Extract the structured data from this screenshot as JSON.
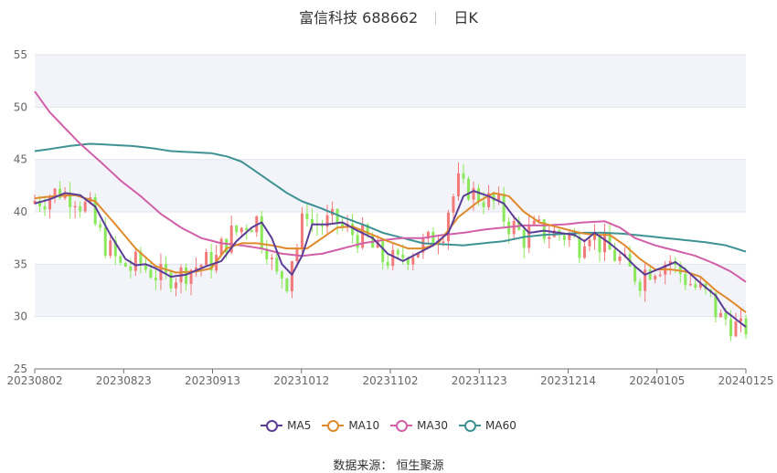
{
  "header": {
    "title": "富信科技 688662",
    "period": "日K"
  },
  "source_text": "数据来源：  恒生聚源",
  "colors": {
    "up": "#f27a7a",
    "down": "#8ae85a",
    "ma5": "#5b3d96",
    "ma10": "#e08a2c",
    "ma30": "#d160a8",
    "ma60": "#3f9294",
    "band": "#f3f4f9",
    "grid": "#e0e6f1"
  },
  "chart_data": {
    "type": "candlestick",
    "title": "富信科技 688662",
    "period": "日K",
    "ylim": [
      25,
      55
    ],
    "yticks": [
      25,
      30,
      35,
      40,
      45,
      50,
      55
    ],
    "x_tick_labels": [
      "20230802",
      "20230823",
      "20230913",
      "20231012",
      "20231102",
      "20231123",
      "20231214",
      "20240105",
      "20240125"
    ],
    "n_days": 121,
    "legend": [
      "MA5",
      "MA10",
      "MA30",
      "MA60"
    ],
    "ma_anchors": {
      "MA5": [
        [
          0,
          40.8
        ],
        [
          3,
          41.2
        ],
        [
          6,
          41.8
        ],
        [
          9,
          41.6
        ],
        [
          12,
          40.5
        ],
        [
          15,
          37.8
        ],
        [
          18,
          35.5
        ],
        [
          20,
          34.9
        ],
        [
          22,
          35.0
        ],
        [
          24,
          34.6
        ],
        [
          27,
          33.8
        ],
        [
          30,
          34.0
        ],
        [
          34,
          34.8
        ],
        [
          37,
          35.3
        ],
        [
          40,
          37.2
        ],
        [
          43,
          38.5
        ],
        [
          45,
          39.0
        ],
        [
          47,
          37.5
        ],
        [
          49,
          35.0
        ],
        [
          51,
          34.0
        ],
        [
          53,
          35.8
        ],
        [
          55,
          38.8
        ],
        [
          58,
          38.8
        ],
        [
          61,
          39.0
        ],
        [
          64,
          38.2
        ],
        [
          67,
          37.5
        ],
        [
          70,
          36.0
        ],
        [
          73,
          35.3
        ],
        [
          75,
          35.8
        ],
        [
          77,
          36.3
        ],
        [
          79,
          36.8
        ],
        [
          82,
          38.0
        ],
        [
          85,
          41.5
        ],
        [
          87,
          42.0
        ],
        [
          90,
          41.5
        ],
        [
          93,
          40.8
        ],
        [
          95,
          39.5
        ],
        [
          98,
          38.0
        ],
        [
          101,
          38.2
        ],
        [
          104,
          38.0
        ],
        [
          107,
          37.8
        ],
        [
          109,
          37.2
        ],
        [
          111,
          38.0
        ],
        [
          114,
          37.0
        ],
        [
          117,
          35.8
        ],
        [
          119,
          34.8
        ],
        [
          121,
          34.0
        ],
        [
          124,
          34.6
        ],
        [
          127,
          35.2
        ],
        [
          129,
          34.5
        ],
        [
          132,
          33.2
        ],
        [
          135,
          32.0
        ],
        [
          137,
          30.5
        ],
        [
          141,
          29.0
        ]
      ],
      "MA10": [
        [
          0,
          41.3
        ],
        [
          4,
          41.5
        ],
        [
          8,
          41.6
        ],
        [
          12,
          41.0
        ],
        [
          16,
          38.8
        ],
        [
          20,
          36.5
        ],
        [
          24,
          34.8
        ],
        [
          28,
          34.2
        ],
        [
          32,
          34.3
        ],
        [
          35,
          34.6
        ],
        [
          38,
          36.5
        ],
        [
          41,
          37.0
        ],
        [
          44,
          37.0
        ],
        [
          47,
          36.8
        ],
        [
          50,
          36.5
        ],
        [
          54,
          36.5
        ],
        [
          57,
          37.5
        ],
        [
          60,
          38.5
        ],
        [
          63,
          38.6
        ],
        [
          66,
          38.0
        ],
        [
          70,
          37.2
        ],
        [
          74,
          36.5
        ],
        [
          77,
          36.5
        ],
        [
          80,
          37.0
        ],
        [
          84,
          39.5
        ],
        [
          88,
          41.0
        ],
        [
          91,
          41.8
        ],
        [
          94,
          41.5
        ],
        [
          97,
          40.0
        ],
        [
          100,
          39.0
        ],
        [
          104,
          38.5
        ],
        [
          108,
          38.0
        ],
        [
          111,
          37.8
        ],
        [
          114,
          37.8
        ],
        [
          117,
          36.8
        ],
        [
          120,
          35.5
        ],
        [
          123,
          34.5
        ],
        [
          126,
          34.5
        ],
        [
          129,
          34.3
        ],
        [
          132,
          33.8
        ],
        [
          135,
          32.5
        ],
        [
          138,
          31.5
        ],
        [
          141,
          30.4
        ]
      ],
      "MA30": [
        [
          0,
          51.5
        ],
        [
          3,
          49.5
        ],
        [
          6,
          48.0
        ],
        [
          9,
          46.5
        ],
        [
          13,
          44.8
        ],
        [
          17,
          43.0
        ],
        [
          21,
          41.5
        ],
        [
          25,
          39.8
        ],
        [
          29,
          38.5
        ],
        [
          33,
          37.5
        ],
        [
          37,
          37.0
        ],
        [
          41,
          36.8
        ],
        [
          45,
          36.5
        ],
        [
          49,
          36.0
        ],
        [
          53,
          35.8
        ],
        [
          57,
          36.0
        ],
        [
          61,
          36.5
        ],
        [
          65,
          37.0
        ],
        [
          69,
          37.3
        ],
        [
          73,
          37.5
        ],
        [
          77,
          37.5
        ],
        [
          81,
          37.8
        ],
        [
          85,
          38.0
        ],
        [
          89,
          38.3
        ],
        [
          93,
          38.5
        ],
        [
          97,
          38.7
        ],
        [
          101,
          38.7
        ],
        [
          105,
          38.8
        ],
        [
          109,
          39.0
        ],
        [
          113,
          39.1
        ],
        [
          116,
          38.5
        ],
        [
          119,
          37.5
        ],
        [
          123,
          36.8
        ],
        [
          127,
          36.3
        ],
        [
          131,
          35.8
        ],
        [
          135,
          35.0
        ],
        [
          138,
          34.3
        ],
        [
          141,
          33.3
        ]
      ],
      "MA60": [
        [
          0,
          45.8
        ],
        [
          3,
          46.0
        ],
        [
          7,
          46.3
        ],
        [
          11,
          46.5
        ],
        [
          15,
          46.4
        ],
        [
          19,
          46.3
        ],
        [
          23,
          46.1
        ],
        [
          27,
          45.8
        ],
        [
          31,
          45.7
        ],
        [
          35,
          45.6
        ],
        [
          38,
          45.3
        ],
        [
          41,
          44.8
        ],
        [
          44,
          43.8
        ],
        [
          47,
          42.8
        ],
        [
          50,
          41.8
        ],
        [
          53,
          41.0
        ],
        [
          57,
          40.3
        ],
        [
          61,
          39.5
        ],
        [
          65,
          38.8
        ],
        [
          69,
          38.0
        ],
        [
          73,
          37.5
        ],
        [
          77,
          37.0
        ],
        [
          81,
          36.9
        ],
        [
          85,
          36.8
        ],
        [
          89,
          37.0
        ],
        [
          93,
          37.2
        ],
        [
          97,
          37.6
        ],
        [
          101,
          37.8
        ],
        [
          105,
          37.9
        ],
        [
          109,
          38.0
        ],
        [
          113,
          38.0
        ],
        [
          117,
          37.9
        ],
        [
          121,
          37.7
        ],
        [
          125,
          37.5
        ],
        [
          129,
          37.3
        ],
        [
          133,
          37.1
        ],
        [
          137,
          36.8
        ],
        [
          141,
          36.2
        ]
      ]
    }
  }
}
